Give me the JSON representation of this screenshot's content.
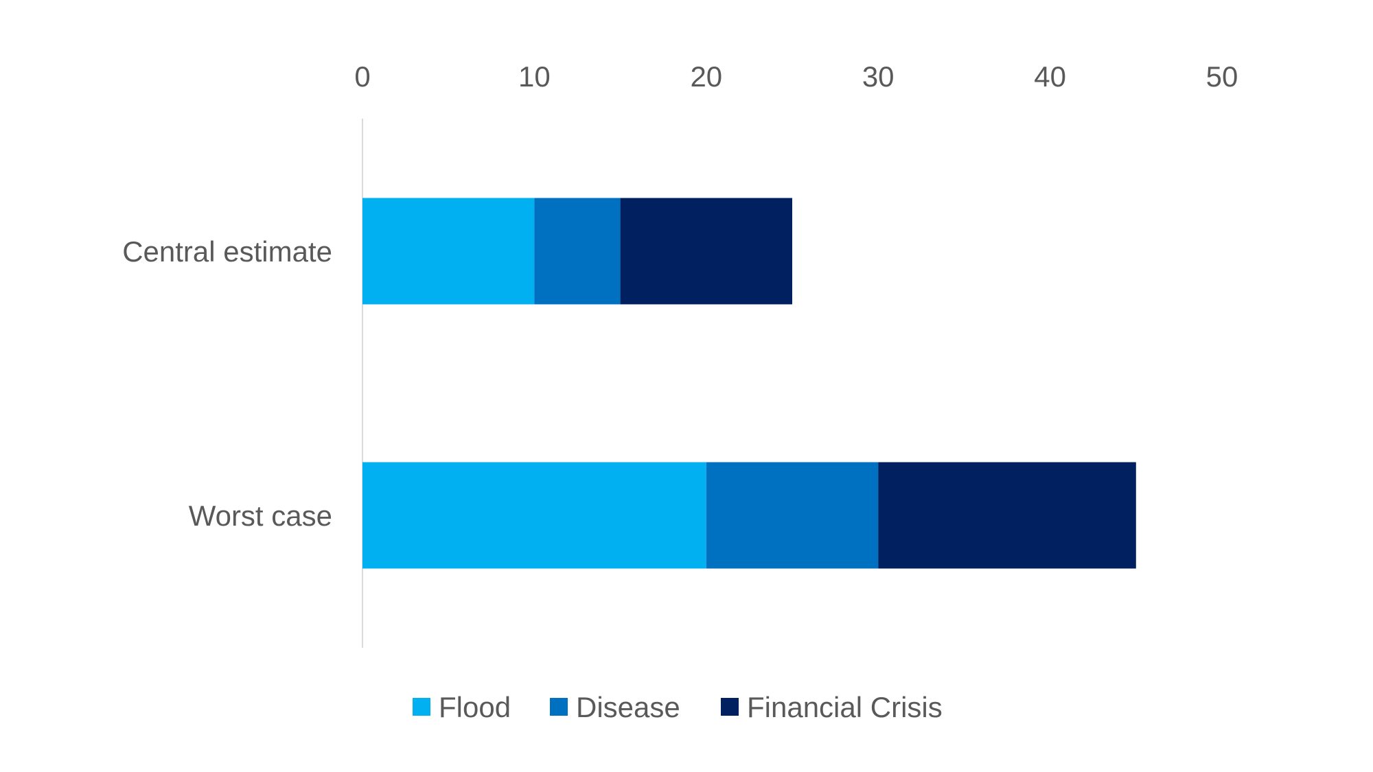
{
  "chart_data": {
    "type": "bar",
    "orientation": "horizontal",
    "stacked": true,
    "title": "",
    "xlabel": "",
    "ylabel": "",
    "xlim": [
      0,
      50
    ],
    "x_ticks": [
      "0",
      "10",
      "20",
      "30",
      "40",
      "50"
    ],
    "x_axis_position": "top",
    "grid": false,
    "legend_position": "bottom",
    "categories": [
      "Central estimate",
      "Worst case"
    ],
    "series": [
      {
        "name": "Flood",
        "color": "#00B0F0",
        "values": [
          10,
          20
        ]
      },
      {
        "name": "Disease",
        "color": "#0070C0",
        "values": [
          5,
          10
        ]
      },
      {
        "name": "Financial Crisis",
        "color": "#002060",
        "values": [
          10,
          15
        ]
      }
    ]
  },
  "colors": {
    "axis_line": "#D9D9D9",
    "text": "#595959",
    "background": "#FFFFFF"
  }
}
